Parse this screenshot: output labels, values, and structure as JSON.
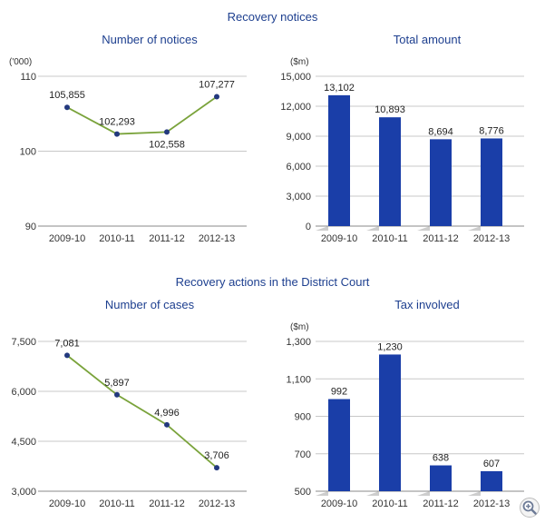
{
  "sections": [
    {
      "title": "Recovery notices"
    },
    {
      "title": "Recovery actions in the District Court"
    }
  ],
  "colors": {
    "title": "#1d3f8f",
    "line": "#7aa33b",
    "marker": "#23397e",
    "bar": "#1a3ea8",
    "axis": "#999999"
  },
  "icons": {
    "zoom": "zoom-in-icon"
  },
  "chart_data": [
    {
      "type": "line",
      "title": "Number of notices",
      "unit_label": "('000)",
      "categories": [
        "2009-10",
        "2010-11",
        "2011-12",
        "2012-13"
      ],
      "values": [
        105.855,
        102.293,
        102.558,
        107.277
      ],
      "value_labels": [
        "105,855",
        "102,293",
        "102,558",
        "107,277"
      ],
      "yticks": [
        "90",
        "100",
        "110"
      ],
      "ytick_values": [
        90,
        100,
        110
      ],
      "ylim": [
        90,
        110
      ],
      "grid": true
    },
    {
      "type": "bar",
      "title": "Total amount",
      "unit_label": "($m)",
      "categories": [
        "2009-10",
        "2010-11",
        "2011-12",
        "2012-13"
      ],
      "values": [
        13102,
        10893,
        8694,
        8776
      ],
      "value_labels": [
        "13,102",
        "10,893",
        "8,694",
        "8,776"
      ],
      "yticks": [
        "0",
        "3,000",
        "6,000",
        "9,000",
        "12,000",
        "15,000"
      ],
      "ytick_values": [
        0,
        3000,
        6000,
        9000,
        12000,
        15000
      ],
      "ylim": [
        0,
        15000
      ],
      "grid": true
    },
    {
      "type": "line",
      "title": "Number of cases",
      "unit_label": "",
      "categories": [
        "2009-10",
        "2010-11",
        "2011-12",
        "2012-13"
      ],
      "values": [
        7081,
        5897,
        4996,
        3706
      ],
      "value_labels": [
        "7,081",
        "5,897",
        "4,996",
        "3,706"
      ],
      "yticks": [
        "3,000",
        "4,500",
        "6,000",
        "7,500"
      ],
      "ytick_values": [
        3000,
        4500,
        6000,
        7500
      ],
      "ylim": [
        3000,
        7500
      ],
      "grid": true
    },
    {
      "type": "bar",
      "title": "Tax involved",
      "unit_label": "($m)",
      "categories": [
        "2009-10",
        "2010-11",
        "2011-12",
        "2012-13"
      ],
      "values": [
        992,
        1230,
        638,
        607
      ],
      "value_labels": [
        "992",
        "1,230",
        "638",
        "607"
      ],
      "yticks": [
        "500",
        "700",
        "900",
        "1,100",
        "1,300"
      ],
      "ytick_values": [
        500,
        700,
        900,
        1100,
        1300
      ],
      "ylim": [
        500,
        1300
      ],
      "grid": true
    }
  ]
}
